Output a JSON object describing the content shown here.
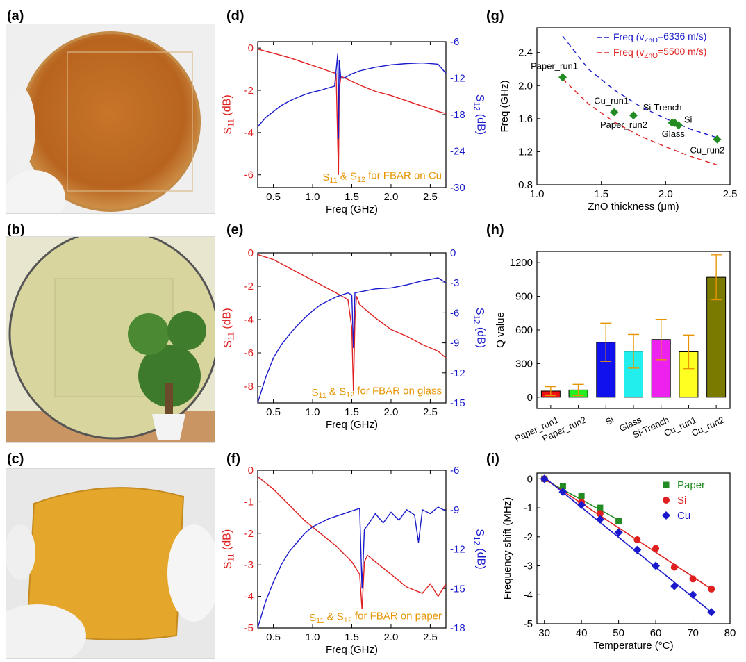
{
  "panel_labels": {
    "a": "(a)",
    "b": "(b)",
    "c": "(c)",
    "d": "(d)",
    "e": "(e)",
    "f": "(f)",
    "g": "(g)",
    "h": "(h)",
    "i": "(i)"
  },
  "photos": [
    {
      "id": "a",
      "subject": "copper-coated wafer held in gloved hand",
      "colors": [
        "#b5651d",
        "#d89a4a",
        "#f2f2f2"
      ]
    },
    {
      "id": "b",
      "subject": "transparent glass wafer in front of a potted plant",
      "colors": [
        "#d6d49a",
        "#3f7a2a",
        "#b98755"
      ]
    },
    {
      "id": "c",
      "subject": "flexible paper substrate bent in gloved hand",
      "colors": [
        "#e2a52a",
        "#f0f0f0",
        "#8a7a55"
      ]
    }
  ],
  "colors": {
    "s11": "#e02020",
    "s12": "#1a1acc",
    "annotation": "#e69500",
    "marker_green": "#228b22",
    "err": "#e69500"
  },
  "chart_data": [
    {
      "id": "d",
      "type": "line",
      "annotation": {
        "prefix": "S",
        "sub1": "11",
        "mid": " & S",
        "sub2": "12",
        "suffix": " for FBAR on Cu"
      },
      "xlabel": "Freq (GHz)",
      "xlim": [
        0.3,
        2.7
      ],
      "xticks": [
        "0.5",
        "1.0",
        "1.5",
        "2.0",
        "2.5"
      ],
      "xtick_values": [
        0.5,
        1.0,
        1.5,
        2.0,
        2.5
      ],
      "ylabel_left": {
        "main": "S",
        "sub": "11",
        "unit": " (dB)"
      },
      "ylim_left": [
        -6.6,
        0.3
      ],
      "yticks_left": [
        "0",
        "-2",
        "-4",
        "-6"
      ],
      "ytick_values_left": [
        0,
        -2,
        -4,
        -6
      ],
      "ylabel_right": {
        "main": "S",
        "sub": "12",
        "unit": " (dB)"
      },
      "ylim_right": [
        -30,
        -6
      ],
      "yticks_right": [
        "-6",
        "-12",
        "-18",
        "-24",
        "-30"
      ],
      "ytick_values_right": [
        -6,
        -12,
        -18,
        -24,
        -30
      ],
      "series": [
        {
          "name": "S11",
          "axis": "left",
          "color": "#e02020",
          "x": [
            0.3,
            0.5,
            0.7,
            0.9,
            1.1,
            1.25,
            1.3,
            1.32,
            1.33,
            1.34,
            1.36,
            1.4,
            1.6,
            1.8,
            2.0,
            2.2,
            2.4,
            2.6,
            2.7
          ],
          "y": [
            -0.05,
            -0.25,
            -0.45,
            -0.7,
            -0.95,
            -1.15,
            -1.2,
            -4.5,
            -6.0,
            -2.0,
            -1.35,
            -1.4,
            -1.75,
            -2.05,
            -2.25,
            -2.5,
            -2.75,
            -3.0,
            -3.1
          ]
        },
        {
          "name": "S12",
          "axis": "right",
          "color": "#1a1acc",
          "x": [
            0.3,
            0.4,
            0.5,
            0.6,
            0.7,
            0.8,
            0.9,
            1.0,
            1.1,
            1.2,
            1.28,
            1.32,
            1.33,
            1.34,
            1.36,
            1.4,
            1.5,
            1.6,
            1.8,
            2.0,
            2.2,
            2.4,
            2.6,
            2.7
          ],
          "y": [
            -20,
            -18.5,
            -17.5,
            -16.5,
            -15.8,
            -15.2,
            -14.7,
            -14.3,
            -14,
            -13.6,
            -13.3,
            -8,
            -22,
            -9,
            -12,
            -12,
            -11.3,
            -10.8,
            -10.2,
            -9.8,
            -9.6,
            -9.5,
            -9.7,
            -11.2
          ]
        }
      ]
    },
    {
      "id": "e",
      "type": "line",
      "annotation": {
        "prefix": "S",
        "sub1": "11",
        "mid": " & S",
        "sub2": "12",
        "suffix": " for FBAR on glass"
      },
      "xlabel": "Freq (GHz)",
      "xlim": [
        0.3,
        2.7
      ],
      "xticks": [
        "0.5",
        "1.0",
        "1.5",
        "2.0",
        "2.5"
      ],
      "xtick_values": [
        0.5,
        1.0,
        1.5,
        2.0,
        2.5
      ],
      "ylabel_left": {
        "main": "S",
        "sub": "11",
        "unit": " (dB)"
      },
      "ylim_left": [
        -9,
        0
      ],
      "yticks_left": [
        "0",
        "-2",
        "-4",
        "-6",
        "-8"
      ],
      "ytick_values_left": [
        0,
        -2,
        -4,
        -6,
        -8
      ],
      "ylabel_right": {
        "main": "S",
        "sub": "12",
        "unit": " (dB)"
      },
      "ylim_right": [
        -15,
        0
      ],
      "yticks_right": [
        "0",
        "-3",
        "-6",
        "-9",
        "-12",
        "-15"
      ],
      "ytick_values_right": [
        0,
        -3,
        -6,
        -9,
        -12,
        -15
      ],
      "series": [
        {
          "name": "S11",
          "axis": "left",
          "color": "#e02020",
          "x": [
            0.3,
            0.5,
            0.7,
            0.9,
            1.1,
            1.3,
            1.45,
            1.5,
            1.52,
            1.54,
            1.56,
            1.6,
            1.8,
            2.0,
            2.2,
            2.4,
            2.6,
            2.7
          ],
          "y": [
            -0.1,
            -0.4,
            -0.9,
            -1.4,
            -1.9,
            -2.4,
            -2.8,
            -4.5,
            -8.3,
            -4.0,
            -2.6,
            -3.1,
            -3.9,
            -4.6,
            -5.0,
            -5.5,
            -5.9,
            -6.3
          ]
        },
        {
          "name": "S12",
          "axis": "right",
          "color": "#1a1acc",
          "x": [
            0.3,
            0.4,
            0.5,
            0.6,
            0.7,
            0.8,
            0.9,
            1.0,
            1.1,
            1.2,
            1.3,
            1.45,
            1.5,
            1.52,
            1.54,
            1.6,
            1.8,
            2.0,
            2.2,
            2.4,
            2.6,
            2.7
          ],
          "y": [
            -15,
            -12.5,
            -10.5,
            -9.2,
            -8.2,
            -7.3,
            -6.5,
            -5.8,
            -5.2,
            -4.8,
            -4.4,
            -4.0,
            -4.2,
            -9.5,
            -4.0,
            -3.9,
            -3.6,
            -3.5,
            -3.2,
            -2.8,
            -2.5,
            -3.0
          ]
        }
      ]
    },
    {
      "id": "f",
      "type": "line",
      "annotation": {
        "prefix": "S",
        "sub1": "11",
        "mid": " & S",
        "sub2": "12",
        "suffix": " for FBAR on paper"
      },
      "xlabel": "Freq (GHz)",
      "xlim": [
        0.3,
        2.7
      ],
      "xticks": [
        "0.5",
        "1.0",
        "1.5",
        "2.0",
        "2.5"
      ],
      "xtick_values": [
        0.5,
        1.0,
        1.5,
        2.0,
        2.5
      ],
      "ylabel_left": {
        "main": "S",
        "sub": "11",
        "unit": " (dB)"
      },
      "ylim_left": [
        -5,
        0
      ],
      "yticks_left": [
        "0",
        "-1",
        "-2",
        "-3",
        "-4",
        "-5"
      ],
      "ytick_values_left": [
        0,
        -1,
        -2,
        -3,
        -4,
        -5
      ],
      "ylabel_right": {
        "main": "S",
        "sub": "12",
        "unit": " (dB)"
      },
      "ylim_right": [
        -18,
        -6
      ],
      "yticks_right": [
        "-6",
        "-9",
        "-12",
        "-15",
        "-18"
      ],
      "ytick_values_right": [
        -6,
        -9,
        -12,
        -15,
        -18
      ],
      "series": [
        {
          "name": "S11",
          "axis": "left",
          "color": "#e02020",
          "x": [
            0.3,
            0.5,
            0.7,
            0.9,
            1.1,
            1.3,
            1.5,
            1.6,
            1.63,
            1.66,
            1.7,
            1.8,
            2.0,
            2.2,
            2.4,
            2.5,
            2.6,
            2.7
          ],
          "y": [
            -0.2,
            -0.6,
            -1.1,
            -1.6,
            -2.0,
            -2.4,
            -2.9,
            -3.3,
            -4.4,
            -2.9,
            -2.7,
            -2.9,
            -3.3,
            -3.7,
            -3.9,
            -3.6,
            -4.0,
            -3.6
          ]
        },
        {
          "name": "S12",
          "axis": "right",
          "color": "#1a1acc",
          "x": [
            0.3,
            0.4,
            0.5,
            0.6,
            0.7,
            0.8,
            0.9,
            1.0,
            1.1,
            1.2,
            1.3,
            1.4,
            1.5,
            1.6,
            1.63,
            1.66,
            1.7,
            1.8,
            1.9,
            2.0,
            2.1,
            2.2,
            2.3,
            2.35,
            2.4,
            2.5,
            2.6,
            2.7
          ],
          "y": [
            -18,
            -16,
            -14.5,
            -13.2,
            -12.2,
            -11.5,
            -10.8,
            -10.3,
            -10.0,
            -9.7,
            -9.5,
            -9.3,
            -9.1,
            -8.9,
            -15,
            -10.5,
            -10.2,
            -9.3,
            -10.0,
            -9.2,
            -9.8,
            -9.0,
            -9.4,
            -11.5,
            -9.0,
            -9.3,
            -8.8,
            -9.1
          ]
        }
      ]
    },
    {
      "id": "g",
      "type": "scatter",
      "xlabel": "ZnO thickness (μm)",
      "xlim": [
        1.0,
        2.5
      ],
      "xticks": [
        "1.0",
        "1.5",
        "2.0",
        "2.5"
      ],
      "xtick_values": [
        1.0,
        1.5,
        2.0,
        2.5
      ],
      "ylabel": "Freq (GHz)",
      "ylim": [
        0.8,
        2.7
      ],
      "yticks": [
        "0.8",
        "1.2",
        "1.6",
        "2.0",
        "2.4"
      ],
      "ytick_values": [
        0.8,
        1.2,
        1.6,
        2.0,
        2.4
      ],
      "legend": [
        {
          "prefix": "Freq (v",
          "sub": "ZnO",
          "suffix": "=6336 m/s)",
          "color": "#1a1acc"
        },
        {
          "prefix": "Freq (v",
          "sub": "ZnO",
          "suffix": "=5500 m/s)",
          "color": "#e02020"
        }
      ],
      "legend_position": "top-right",
      "curves": [
        {
          "x": [
            1.2,
            1.4,
            1.6,
            1.8,
            2.0,
            2.2,
            2.4
          ],
          "y": [
            2.6,
            2.2,
            1.95,
            1.75,
            1.6,
            1.47,
            1.37
          ],
          "color": "#1a1acc"
        },
        {
          "x": [
            1.2,
            1.4,
            1.6,
            1.8,
            2.0,
            2.2,
            2.4
          ],
          "y": [
            2.08,
            1.78,
            1.56,
            1.39,
            1.26,
            1.14,
            1.04
          ],
          "color": "#e02020"
        }
      ],
      "points": [
        {
          "label": "Paper_run1",
          "x": 1.2,
          "y": 2.1
        },
        {
          "label": "Cu_run1",
          "x": 1.6,
          "y": 1.68
        },
        {
          "label": "Paper_run2",
          "x": 1.75,
          "y": 1.64
        },
        {
          "label": "Si-Trench",
          "x": 2.05,
          "y": 1.55
        },
        {
          "label": "Glass",
          "x": 2.07,
          "y": 1.55
        },
        {
          "label": "Si",
          "x": 2.1,
          "y": 1.52
        },
        {
          "label": "Cu_run2",
          "x": 2.4,
          "y": 1.35
        }
      ]
    },
    {
      "id": "h",
      "type": "bar",
      "ylabel": "Q value",
      "ylim": [
        -100,
        1300
      ],
      "yticks": [
        "0",
        "300",
        "600",
        "900",
        "1200"
      ],
      "ytick_values": [
        0,
        300,
        600,
        900,
        1200
      ],
      "categories": [
        "Paper_run1",
        "Paper_run2",
        "Si",
        "Glass",
        "Si-Trench",
        "Cu_run1",
        "Cu_run2"
      ],
      "values": [
        55,
        65,
        490,
        410,
        515,
        405,
        1070
      ],
      "errors": [
        40,
        50,
        170,
        150,
        180,
        150,
        200
      ],
      "bar_colors": [
        "#ee1111",
        "#22ee22",
        "#1111ee",
        "#22eeee",
        "#ee22ee",
        "#ffff22",
        "#7a7a00"
      ]
    },
    {
      "id": "i",
      "type": "scatter",
      "xlabel": "Temperature (°C)",
      "xlim": [
        28,
        80
      ],
      "xticks": [
        "30",
        "40",
        "50",
        "60",
        "70",
        "80"
      ],
      "xtick_values": [
        30,
        40,
        50,
        60,
        70,
        80
      ],
      "ylabel": "Frequency shift (MHz)",
      "ylim": [
        -5,
        0.2
      ],
      "yticks": [
        "0",
        "-1",
        "-2",
        "-3",
        "-4",
        "-5"
      ],
      "ytick_values": [
        0,
        -1,
        -2,
        -3,
        -4,
        -5
      ],
      "legend_position": "top-right",
      "series": [
        {
          "name": "Paper",
          "marker": "square",
          "color": "#228b22",
          "x": [
            30,
            35,
            40,
            45,
            50
          ],
          "y": [
            0,
            -0.25,
            -0.6,
            -1.0,
            -1.45
          ],
          "fit": {
            "x": [
              30,
              50
            ],
            "y": [
              -0.02,
              -1.42
            ]
          }
        },
        {
          "name": "Si",
          "marker": "circle",
          "color": "#e02020",
          "x": [
            30,
            40,
            45,
            55,
            60,
            65,
            70,
            75
          ],
          "y": [
            0,
            -0.8,
            -1.2,
            -2.1,
            -2.4,
            -3.05,
            -3.45,
            -3.8
          ],
          "fit": {
            "x": [
              30,
              75
            ],
            "y": [
              0.0,
              -3.8
            ]
          }
        },
        {
          "name": "Cu",
          "marker": "diamond",
          "color": "#1a1acc",
          "x": [
            30,
            35,
            40,
            45,
            50,
            55,
            60,
            65,
            70,
            75
          ],
          "y": [
            0,
            -0.45,
            -0.9,
            -1.4,
            -1.85,
            -2.45,
            -3.0,
            -3.7,
            -4.0,
            -4.6
          ],
          "fit": {
            "x": [
              30,
              75
            ],
            "y": [
              0.05,
              -4.6
            ]
          }
        }
      ]
    }
  ]
}
